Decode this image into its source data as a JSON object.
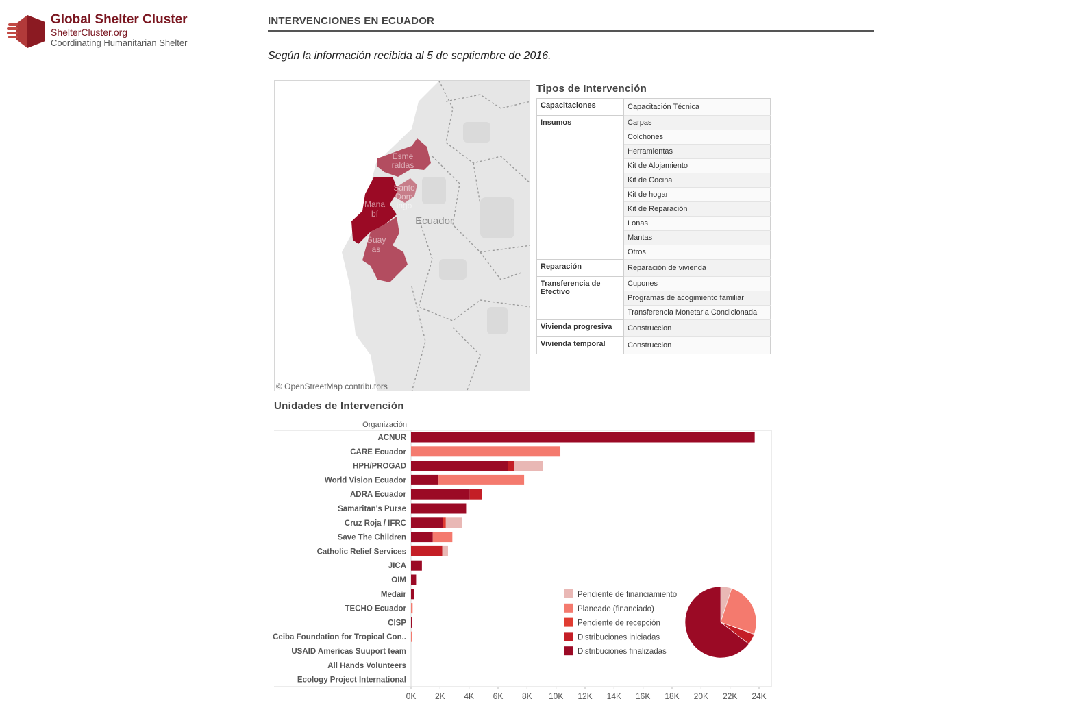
{
  "logo": {
    "title": "Global Shelter Cluster",
    "site": "ShelterCluster.org",
    "tagline": "Coordinating Humanitarian Shelter",
    "icon": "shelter-cluster-logo-icon"
  },
  "header": {
    "title": "INTERVENCIONES EN ECUADOR",
    "subtitle": "Según la información recibida al 5 de septiembre de 2016."
  },
  "map": {
    "country_label": "Ecuador",
    "attribution": "© OpenStreetMap contributors",
    "regions": [
      {
        "name": "Esmeraldas",
        "label_lines": [
          "Esme",
          "raldas"
        ]
      },
      {
        "name": "Santo Domingo",
        "label_lines": [
          "Santo",
          "Dom",
          "ingo"
        ]
      },
      {
        "name": "Manabí",
        "label_lines": [
          "Mana",
          "bí"
        ]
      },
      {
        "name": "Guayas",
        "label_lines": [
          "Guay",
          "as"
        ]
      }
    ]
  },
  "types": {
    "title": "Tipos de Intervención",
    "groups": [
      {
        "category": "Capacitaciones",
        "items": [
          "Capacitación Técnica"
        ]
      },
      {
        "category": "Insumos",
        "items": [
          "Carpas",
          "Colchones",
          "Herramientas",
          "Kit de Alojamiento",
          "Kit de Cocina",
          "Kit de hogar",
          "Kit de Reparación",
          "Lonas",
          "Mantas",
          "Otros"
        ]
      },
      {
        "category": "Reparación",
        "items": [
          "Reparación de vivienda"
        ]
      },
      {
        "category": "Transferencia de Efectivo",
        "items": [
          "Cupones",
          "Programas de acogimiento familiar",
          "Transferencia Monetaria Condicionada"
        ]
      },
      {
        "category": "Vivienda progresiva",
        "items": [
          "Construccion"
        ]
      },
      {
        "category": "Vivienda temporal",
        "items": [
          "Construccion"
        ]
      }
    ]
  },
  "units": {
    "title": "Unidades de Intervención",
    "ylabel": "Organización"
  },
  "colors": {
    "finalizadas": "#9b0a25",
    "iniciadas": "#c41e26",
    "pendiente_recepcion": "#e03c31",
    "planeado": "#f47a6e",
    "pendiente_financiamiento": "#e9b8b5"
  },
  "chart_data": {
    "type": "bar",
    "orientation": "horizontal",
    "stacked": true,
    "xlim": [
      0,
      24000
    ],
    "xticks": [
      "0K",
      "2K",
      "4K",
      "6K",
      "8K",
      "10K",
      "12K",
      "14K",
      "16K",
      "18K",
      "20K",
      "22K",
      "24K"
    ],
    "categories": [
      "ACNUR",
      "CARE Ecuador",
      "HPH/PROGAD",
      "World Vision Ecuador",
      "ADRA Ecuador",
      "Samaritan's Purse",
      "Cruz Roja / IFRC",
      "Save The Children",
      "Catholic Relief Services",
      "JICA",
      "OIM",
      "Medair",
      "TECHO Ecuador",
      "CISP",
      "Ceiba Foundation for Tropical Con..",
      "USAID Americas Suuport team",
      "All Hands Volunteers",
      "Ecology Project International"
    ],
    "series": [
      {
        "name": "Distribuciones finalizadas",
        "color_key": "finalizadas",
        "values": [
          23700,
          0,
          6700,
          1900,
          4050,
          3800,
          2200,
          1500,
          0,
          750,
          350,
          200,
          0,
          60,
          0,
          0,
          0,
          0
        ]
      },
      {
        "name": "Distribuciones iniciadas",
        "color_key": "iniciadas",
        "values": [
          0,
          0,
          400,
          0,
          850,
          0,
          0,
          0,
          2150,
          0,
          0,
          0,
          0,
          0,
          0,
          0,
          0,
          0
        ]
      },
      {
        "name": "Pendiente de recepción",
        "color_key": "pendiente_recepcion",
        "values": [
          0,
          0,
          0,
          0,
          0,
          0,
          200,
          0,
          0,
          0,
          0,
          0,
          0,
          0,
          0,
          0,
          0,
          0
        ]
      },
      {
        "name": "Planeado (financiado)",
        "color_key": "planeado",
        "values": [
          0,
          10300,
          0,
          5900,
          0,
          0,
          0,
          1350,
          0,
          0,
          0,
          0,
          110,
          0,
          60,
          0,
          0,
          0
        ]
      },
      {
        "name": "Pendiente de financiamiento",
        "color_key": "pendiente_financiamiento",
        "values": [
          0,
          0,
          2000,
          0,
          0,
          0,
          1100,
          0,
          400,
          0,
          0,
          0,
          0,
          0,
          0,
          0,
          0,
          0
        ]
      }
    ],
    "legend": {
      "position": "bottom-right",
      "items": [
        "Pendiente de financiamiento",
        "Planeado (financiado)",
        "Pendiente de recepción",
        "Distribuciones iniciadas",
        "Distribuciones finalizadas"
      ],
      "color_keys": [
        "pendiente_financiamiento",
        "planeado",
        "pendiente_recepcion",
        "iniciadas",
        "finalizadas"
      ]
    },
    "pie": {
      "type": "pie",
      "labels": [
        "Distribuciones finalizadas",
        "Distribuciones iniciadas",
        "Pendiente de recepción",
        "Planeado (financiado)",
        "Pendiente de financiamiento"
      ],
      "color_keys": [
        "finalizadas",
        "iniciadas",
        "pendiente_recepcion",
        "planeado",
        "pendiente_financiamiento"
      ],
      "values": [
        45210,
        3400,
        200,
        17720,
        3500
      ]
    }
  }
}
